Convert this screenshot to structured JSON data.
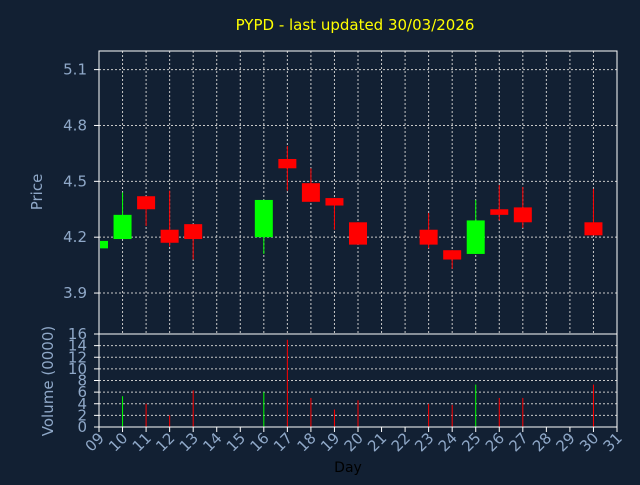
{
  "chart_data": {
    "type": "candlestick",
    "title": "PYPD - last updated 30/03/2026",
    "price_panel": {
      "ylabel": "Price",
      "ylim": [
        3.68,
        5.2
      ],
      "yticks": [
        "3.9",
        "4.2",
        "4.5",
        "4.8",
        "5.1"
      ],
      "ytick_values": [
        3.9,
        4.2,
        4.5,
        4.8,
        5.1
      ]
    },
    "volume_panel": {
      "ylabel": "Volume (0000)",
      "ylim": [
        0,
        16
      ],
      "yticks": [
        "0",
        "2",
        "4",
        "6",
        "8",
        "10",
        "12",
        "14",
        "16"
      ],
      "ytick_values": [
        0,
        2,
        4,
        6,
        8,
        10,
        12,
        14,
        16
      ]
    },
    "xlabel": "Day",
    "x_range": [
      9,
      31
    ],
    "xticks": [
      "09",
      "10",
      "11",
      "12",
      "13",
      "14",
      "15",
      "16",
      "17",
      "18",
      "19",
      "20",
      "21",
      "22",
      "23",
      "24",
      "25",
      "26",
      "27",
      "28",
      "29",
      "30",
      "31"
    ],
    "grid": true,
    "up_color": "#00ff00",
    "down_color": "#ff0000",
    "candles": [
      {
        "day": 9,
        "open": 4.14,
        "close": 4.18,
        "high": 4.18,
        "low": 4.14,
        "volume": 0
      },
      {
        "day": 10,
        "open": 4.19,
        "close": 4.32,
        "high": 4.44,
        "low": 4.19,
        "volume": 5.3
      },
      {
        "day": 11,
        "open": 4.42,
        "close": 4.35,
        "high": 4.42,
        "low": 4.26,
        "volume": 4.0
      },
      {
        "day": 12,
        "open": 4.24,
        "close": 4.17,
        "high": 4.45,
        "low": 4.15,
        "volume": 2.0
      },
      {
        "day": 13,
        "open": 4.27,
        "close": 4.19,
        "high": 4.27,
        "low": 4.08,
        "volume": 6.3
      },
      {
        "day": 16,
        "open": 4.2,
        "close": 4.4,
        "high": 4.4,
        "low": 4.11,
        "volume": 6.0
      },
      {
        "day": 17,
        "open": 4.62,
        "close": 4.57,
        "high": 4.69,
        "low": 4.45,
        "volume": 15.0
      },
      {
        "day": 18,
        "open": 4.49,
        "close": 4.39,
        "high": 4.57,
        "low": 4.39,
        "volume": 5.0
      },
      {
        "day": 19,
        "open": 4.41,
        "close": 4.37,
        "high": 4.41,
        "low": 4.24,
        "volume": 3.0
      },
      {
        "day": 20,
        "open": 4.28,
        "close": 4.16,
        "high": 4.28,
        "low": 4.16,
        "volume": 4.6
      },
      {
        "day": 23,
        "open": 4.24,
        "close": 4.16,
        "high": 4.33,
        "low": 4.14,
        "volume": 4.0
      },
      {
        "day": 24,
        "open": 4.13,
        "close": 4.08,
        "high": 4.13,
        "low": 4.03,
        "volume": 3.8
      },
      {
        "day": 25,
        "open": 4.11,
        "close": 4.29,
        "high": 4.4,
        "low": 4.11,
        "volume": 7.3
      },
      {
        "day": 26,
        "open": 4.35,
        "close": 4.32,
        "high": 4.48,
        "low": 4.29,
        "volume": 5.0
      },
      {
        "day": 27,
        "open": 4.36,
        "close": 4.28,
        "high": 4.47,
        "low": 4.25,
        "volume": 5.0
      },
      {
        "day": 30,
        "open": 4.28,
        "close": 4.21,
        "high": 4.46,
        "low": 4.21,
        "volume": 7.3
      }
    ]
  },
  "colors": {
    "background": "#122033",
    "title": "#ffff00",
    "axis_text": "#8fa8c8",
    "axis_line": "#ffffff",
    "grid": "#c8c8c8"
  }
}
